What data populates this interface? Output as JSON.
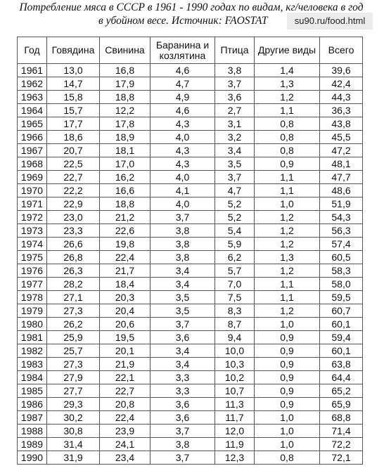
{
  "header": {
    "title": [
      "Потребление мяса в СССР в 1961 - 1990 годах по видам, кг/человека в год",
      "в убойном весе. Источник: FAOSTAT"
    ],
    "watermark": "su90.ru/food.html"
  },
  "table": {
    "header": [
      "Год",
      "Говядина",
      "Свинина",
      "Баранина и козлятина",
      "Птица",
      "Другие виды",
      "Всего"
    ],
    "rows": [
      [
        "1961",
        "13,0",
        "16,8",
        "4,6",
        "3,8",
        "1,4",
        "39,6"
      ],
      [
        "1962",
        "14,7",
        "17,9",
        "4,7",
        "3,7",
        "1,3",
        "42,4"
      ],
      [
        "1963",
        "15,8",
        "18,8",
        "4,9",
        "3,6",
        "1,2",
        "44,3"
      ],
      [
        "1964",
        "15,7",
        "12,2",
        "4,6",
        "2,7",
        "1,1",
        "36,3"
      ],
      [
        "1965",
        "17,7",
        "17,8",
        "4,3",
        "3,1",
        "0,8",
        "43,8"
      ],
      [
        "1966",
        "18,6",
        "18,9",
        "4,0",
        "3,2",
        "0,8",
        "45,5"
      ],
      [
        "1967",
        "20,7",
        "18,1",
        "4,3",
        "3,4",
        "0,8",
        "47,2"
      ],
      [
        "1968",
        "22,5",
        "17,0",
        "4,3",
        "3,5",
        "0,9",
        "48,1"
      ],
      [
        "1969",
        "22,7",
        "16,2",
        "4,0",
        "3,7",
        "1,1",
        "47,7"
      ],
      [
        "1970",
        "22,2",
        "16,6",
        "4,1",
        "4,7",
        "1,1",
        "48,6"
      ],
      [
        "1971",
        "22,9",
        "18,8",
        "4,0",
        "5,2",
        "1,0",
        "51,9"
      ],
      [
        "1972",
        "23,0",
        "21,2",
        "3,7",
        "5,2",
        "1,2",
        "54,3"
      ],
      [
        "1973",
        "23,3",
        "22,6",
        "3,8",
        "5,4",
        "1,2",
        "56,3"
      ],
      [
        "1974",
        "26,6",
        "19,8",
        "3,8",
        "5,9",
        "1,2",
        "57,4"
      ],
      [
        "1975",
        "26,8",
        "22,4",
        "3,8",
        "6,2",
        "1,3",
        "60,5"
      ],
      [
        "1976",
        "26,3",
        "21,7",
        "3,4",
        "5,7",
        "1,2",
        "58,3"
      ],
      [
        "1977",
        "28,2",
        "18,4",
        "3,4",
        "7,0",
        "1,1",
        "58,0"
      ],
      [
        "1978",
        "27,1",
        "20,3",
        "3,5",
        "7,5",
        "1,1",
        "59,5"
      ],
      [
        "1979",
        "27,3",
        "20,4",
        "3,5",
        "8,3",
        "1,2",
        "60,7"
      ],
      [
        "1980",
        "26,2",
        "20,6",
        "3,7",
        "8,7",
        "1,0",
        "60,1"
      ],
      [
        "1981",
        "25,9",
        "19,5",
        "3,6",
        "9,4",
        "0,9",
        "59,4"
      ],
      [
        "1982",
        "25,7",
        "20,1",
        "3,4",
        "10,0",
        "0,9",
        "60,1"
      ],
      [
        "1983",
        "27,3",
        "21,9",
        "3,4",
        "10,3",
        "0,9",
        "63,8"
      ],
      [
        "1984",
        "27,9",
        "22,1",
        "3,3",
        "10,2",
        "0,9",
        "64,4"
      ],
      [
        "1985",
        "27,7",
        "22,7",
        "3,3",
        "10,7",
        "0,9",
        "65,2"
      ],
      [
        "1986",
        "29,3",
        "20,8",
        "3,6",
        "11,3",
        "0,9",
        "65,9"
      ],
      [
        "1987",
        "30,2",
        "22,4",
        "3,6",
        "11,7",
        "1,0",
        "68,8"
      ],
      [
        "1988",
        "30,8",
        "23,9",
        "3,7",
        "12,0",
        "1,0",
        "71,4"
      ],
      [
        "1989",
        "31,4",
        "24,1",
        "3,8",
        "11,9",
        "1,0",
        "72,2"
      ],
      [
        "1990",
        "31,9",
        "23,4",
        "3,7",
        "12,3",
        "0,8",
        "72,1"
      ]
    ]
  }
}
